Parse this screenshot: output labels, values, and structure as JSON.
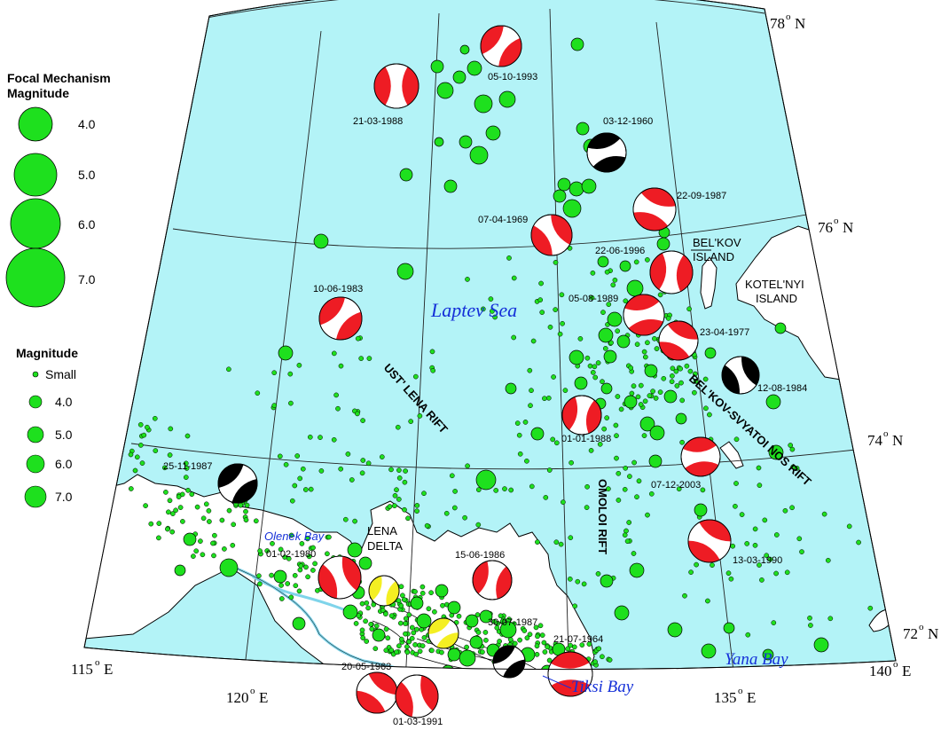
{
  "legend": {
    "focal_title_1": "Focal Mechanism",
    "focal_title_2": "Magnitude",
    "focal_mags": [
      "4.0",
      "5.0",
      "6.0",
      "7.0"
    ],
    "mag_title": "Magnitude",
    "mag_small": "Small",
    "mag_values": [
      "4.0",
      "5.0",
      "6.0",
      "7.0"
    ]
  },
  "coords": {
    "lat78": "78",
    "lat76": "76",
    "lat74": "74",
    "lat72": "72",
    "lon115": "115",
    "lon120": "120",
    "lon135": "135",
    "lon140": "140",
    "deg": "o",
    "N": "N",
    "E": "E"
  },
  "labels": {
    "laptev_sea": "Laptev Sea",
    "olenek_bay": "Olenek Bay",
    "yana_bay": "Yana Bay",
    "tiksi_bay": "Tiksi Bay",
    "lena_1": "LENA",
    "lena_2": "DELTA",
    "belkov_1": "BEL'KOV",
    "belkov_2": "ISLAND",
    "kotel_1": "KOTEL'NYI",
    "kotel_2": "ISLAND",
    "ust_lena_rift": "UST' LENA RIFT",
    "omoloi_rift": "OMOLOI RIFT",
    "belkov_rift": "BEL'KOV-SVYATOI NOS RIFT"
  },
  "colors": {
    "sea": "#b3f3f7",
    "land": "#ffffff",
    "quake": "#1ee01e",
    "mech_red": "#ee1c24",
    "mech_black": "#000000",
    "mech_yellow": "#f4ef22",
    "water_label": "#1530d8"
  },
  "focal_mechanisms": [
    {
      "date": "21-03-1988",
      "color": "red"
    },
    {
      "date": "05-10-1993",
      "color": "red"
    },
    {
      "date": "03-12-1960",
      "color": "black"
    },
    {
      "date": "22-09-1987",
      "color": "red"
    },
    {
      "date": "07-04-1969",
      "color": "red"
    },
    {
      "date": "22-06-1996",
      "color": "red"
    },
    {
      "date": "10-06-1983",
      "color": "red"
    },
    {
      "date": "05-08-1989",
      "color": "red"
    },
    {
      "date": "23-04-1977",
      "color": "red"
    },
    {
      "date": "12-08-1984",
      "color": "black"
    },
    {
      "date": "01-01-1988",
      "color": "red"
    },
    {
      "date": "25-11-1987",
      "color": "black"
    },
    {
      "date": "07-12-2003",
      "color": "red"
    },
    {
      "date": "13-03-1990",
      "color": "red"
    },
    {
      "date": "01-02-1980",
      "color": "red"
    },
    {
      "date": "15-06-1986",
      "color": "red"
    },
    {
      "date": "30-07-1987",
      "color": "black"
    },
    {
      "date": "21-07-1964",
      "color": "red"
    },
    {
      "date": "20-05-1963",
      "color": "red"
    },
    {
      "date": "01-03-1991",
      "color": "red"
    },
    {
      "date": "",
      "color": "yellow"
    },
    {
      "date": "",
      "color": "yellow"
    }
  ]
}
